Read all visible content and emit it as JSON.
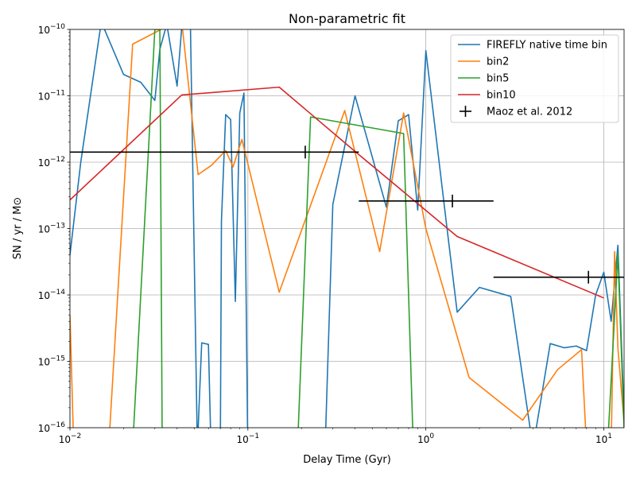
{
  "chart_data": {
    "type": "line",
    "title": "Non-parametric fit",
    "xlabel": "Delay Time (Gyr)",
    "ylabel": "SN / yr / M⊙",
    "x_scale": "log",
    "y_scale": "log",
    "xlim": [
      0.01,
      13
    ],
    "ylim": [
      1e-16,
      1e-10
    ],
    "grid": true,
    "legend_position": "top-right",
    "x_ticks": [
      {
        "value": 0.01,
        "base": "10",
        "exp": "−2"
      },
      {
        "value": 0.1,
        "base": "10",
        "exp": "−1"
      },
      {
        "value": 1,
        "base": "10",
        "exp": "0"
      },
      {
        "value": 10,
        "base": "10",
        "exp": "1"
      }
    ],
    "y_ticks": [
      {
        "value": 1e-16,
        "base": "10",
        "exp": "−16"
      },
      {
        "value": 1e-15,
        "base": "10",
        "exp": "−15"
      },
      {
        "value": 1e-14,
        "base": "10",
        "exp": "−14"
      },
      {
        "value": 1e-13,
        "base": "10",
        "exp": "−13"
      },
      {
        "value": 1e-12,
        "base": "10",
        "exp": "−12"
      },
      {
        "value": 1e-11,
        "base": "10",
        "exp": "−11"
      },
      {
        "value": 1e-10,
        "base": "10",
        "exp": "−10"
      }
    ],
    "series": [
      {
        "name": "FIREFLY native time bin",
        "color": "#1f77b4",
        "points": [
          [
            0.01,
            4e-14
          ],
          [
            0.0115,
            1e-12
          ],
          [
            0.015,
            1.3e-10
          ],
          [
            0.02,
            2.1e-11
          ],
          [
            0.025,
            1.6e-11
          ],
          [
            0.03,
            8.5e-12
          ],
          [
            0.032,
            5e-11
          ],
          [
            0.035,
            1.2e-10
          ],
          [
            0.04,
            1.4e-11
          ],
          [
            0.0425,
            1.1e-10
          ],
          [
            0.0475,
            1.3e-10
          ],
          [
            0.052,
            5e-17
          ],
          [
            0.055,
            1.9e-15
          ],
          [
            0.06,
            1.8e-15
          ],
          [
            0.062,
            5e-17
          ],
          [
            0.07,
            5e-17
          ],
          [
            0.071,
            1.3e-13
          ],
          [
            0.075,
            5.2e-12
          ],
          [
            0.08,
            4.4e-12
          ],
          [
            0.085,
            8e-15
          ],
          [
            0.09,
            5.5e-12
          ],
          [
            0.095,
            1.1e-11
          ],
          [
            0.1,
            3e-17
          ],
          [
            0.27,
            3e-17
          ],
          [
            0.3,
            2.3e-13
          ],
          [
            0.4,
            1e-11
          ],
          [
            0.6,
            2.1e-13
          ],
          [
            0.7,
            4.2e-12
          ],
          [
            0.8,
            5.2e-12
          ],
          [
            0.9,
            1.9e-13
          ],
          [
            1.0,
            4.8e-11
          ],
          [
            1.3,
            1.3e-13
          ],
          [
            1.5,
            5.5e-15
          ],
          [
            2.0,
            1.3e-14
          ],
          [
            3.0,
            9.5e-15
          ],
          [
            4.0,
            5e-17
          ],
          [
            5.0,
            1.85e-15
          ],
          [
            6.0,
            1.6e-15
          ],
          [
            7.0,
            1.7e-15
          ],
          [
            8.0,
            1.45e-15
          ],
          [
            9.0,
            1e-14
          ],
          [
            10.0,
            2.2e-14
          ],
          [
            11.0,
            4e-15
          ],
          [
            12.0,
            5.6e-14
          ],
          [
            13.0,
            1.5e-16
          ]
        ]
      },
      {
        "name": "bin2",
        "color": "#ff7f0e",
        "points": [
          [
            0.01,
            5e-15
          ],
          [
            0.0105,
            5e-17
          ],
          [
            0.0165,
            5e-17
          ],
          [
            0.0225,
            6e-11
          ],
          [
            0.0325,
            1e-10
          ],
          [
            0.0425,
            1.3e-10
          ],
          [
            0.0525,
            6.5e-13
          ],
          [
            0.0625,
            9e-13
          ],
          [
            0.075,
            1.5e-12
          ],
          [
            0.0825,
            8.5e-13
          ],
          [
            0.0925,
            2.2e-12
          ],
          [
            0.15,
            1.1e-14
          ],
          [
            0.35,
            6e-12
          ],
          [
            0.55,
            4.5e-14
          ],
          [
            0.75,
            5.5e-12
          ],
          [
            1.0,
            1e-13
          ],
          [
            1.75,
            5.7e-16
          ],
          [
            3.5,
            1.3e-16
          ],
          [
            5.5,
            7.5e-16
          ],
          [
            7.5,
            1.5e-15
          ],
          [
            8.0,
            5e-17
          ],
          [
            11.0,
            5e-17
          ],
          [
            11.5,
            4.5e-14
          ],
          [
            12.0,
            1.6e-15
          ],
          [
            13.0,
            1.2e-16
          ]
        ]
      },
      {
        "name": "bin5",
        "color": "#2ca02c",
        "points": [
          [
            0.0225,
            5e-17
          ],
          [
            0.03,
            1e-10
          ],
          [
            0.032,
            1e-10
          ],
          [
            0.033,
            5e-17
          ],
          [
            0.19,
            5e-17
          ],
          [
            0.225,
            4.8e-12
          ],
          [
            0.75,
            2.7e-12
          ],
          [
            0.85,
            5e-17
          ],
          [
            10.5,
            5e-17
          ],
          [
            12.0,
            4.2e-14
          ],
          [
            13.0,
            1e-16
          ]
        ]
      },
      {
        "name": "bin10",
        "color": "#d62728",
        "points": [
          [
            0.01,
            2.7e-13
          ],
          [
            0.0425,
            1.03e-11
          ],
          [
            0.15,
            1.35e-11
          ],
          [
            0.4,
            1.45e-12
          ],
          [
            1.5,
            7.6e-14
          ],
          [
            10.0,
            9e-15
          ]
        ]
      }
    ],
    "reference": {
      "name": "Maoz et al. 2012",
      "color": "#000000",
      "points": [
        {
          "x": 0.21,
          "y": 1.42e-12,
          "xlow": 0.01,
          "xhigh": 0.42
        },
        {
          "x": 1.41,
          "y": 2.6e-13,
          "xlow": 0.42,
          "xhigh": 2.4
        },
        {
          "x": 8.2,
          "y": 1.85e-14,
          "xlow": 2.4,
          "xhigh": 14.0
        }
      ]
    }
  }
}
